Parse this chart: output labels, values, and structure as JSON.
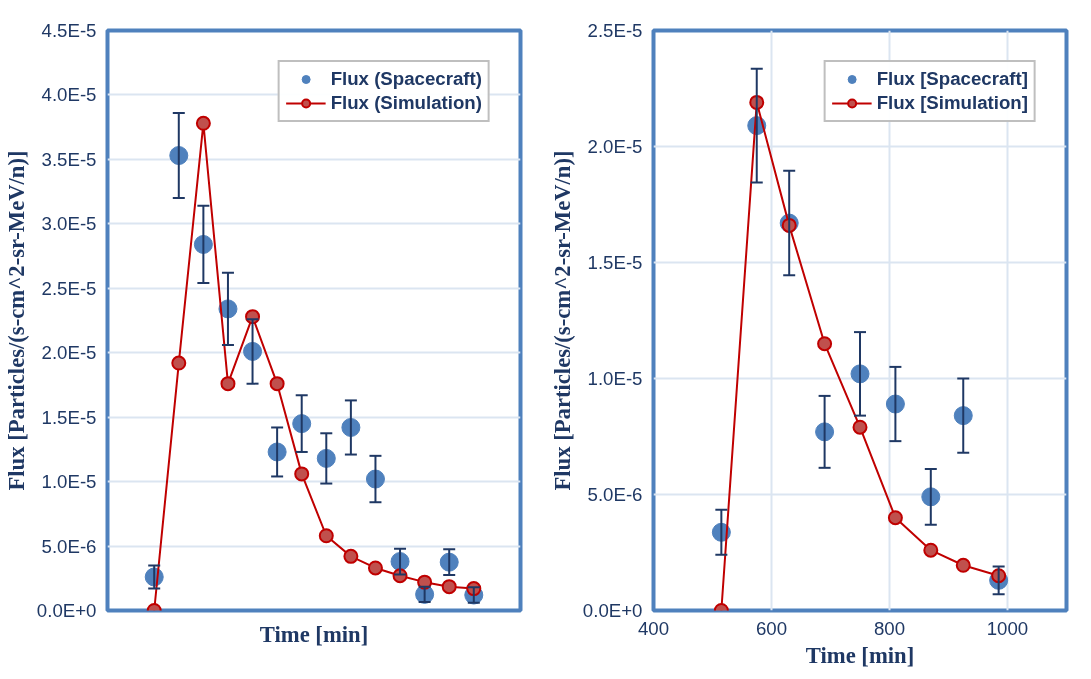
{
  "chart_data": [
    {
      "type": "scatter",
      "xlabel": "Time [min]",
      "ylabel": "Flux [Particles/(s-cm^2-sr-MeV/n)]",
      "categories": [
        null,
        null,
        null,
        null,
        null,
        null,
        null,
        null,
        null,
        null,
        null,
        null,
        null,
        null
      ],
      "ylim": [
        0,
        4.5e-05
      ],
      "yticks": [
        {
          "value": 0,
          "label": "0.0E+0"
        },
        {
          "value": 5e-06,
          "label": "5.0E-6"
        },
        {
          "value": 1e-05,
          "label": "1.0E-5"
        },
        {
          "value": 1.5e-05,
          "label": "1.5E-5"
        },
        {
          "value": 2e-05,
          "label": "2.0E-5"
        },
        {
          "value": 2.5e-05,
          "label": "2.5E-5"
        },
        {
          "value": 3e-05,
          "label": "3.0E-5"
        },
        {
          "value": 3.5e-05,
          "label": "3.5E-5"
        },
        {
          "value": 4e-05,
          "label": "4.0E-5"
        },
        {
          "value": 4.5e-05,
          "label": "4.5E-5"
        }
      ],
      "grid": "y",
      "legend": "top right",
      "tick_labels": "y",
      "series": [
        {
          "name": "Flux (Spacecraft)",
          "marker": "circle",
          "color": "#4f81bd",
          "values": [
            2.6e-06,
            3.53e-05,
            2.84e-05,
            2.34e-05,
            2.01e-05,
            1.23e-05,
            1.45e-05,
            1.18e-05,
            1.42e-05,
            1.02e-05,
            3.8e-06,
            1.25e-06,
            3.75e-06,
            1.2e-06
          ],
          "errors": [
            9e-07,
            3.3e-06,
            3e-06,
            2.8e-06,
            2.5e-06,
            1.9e-06,
            2.2e-06,
            1.95e-06,
            2.1e-06,
            1.8e-06,
            1e-06,
            6e-07,
            1e-06,
            6e-07
          ]
        },
        {
          "name": "Flux (Simulation)",
          "type": "line",
          "marker": "circle",
          "line_style": "solid",
          "color": "#c0504d",
          "values": [
            0,
            1.92e-05,
            3.78e-05,
            1.76e-05,
            2.28e-05,
            1.76e-05,
            1.06e-05,
            5.8e-06,
            4.2e-06,
            3.3e-06,
            2.7e-06,
            2.2e-06,
            1.85e-06,
            1.7e-06
          ]
        }
      ]
    },
    {
      "type": "scatter",
      "xlabel": "Time [min]",
      "ylabel": "Flux [Particles/(s-cm^2-sr-MeV/n)]",
      "x": [
        515,
        575,
        630,
        690,
        750,
        810,
        870,
        925,
        985
      ],
      "xlim": [
        400,
        1100
      ],
      "xticks": [
        400,
        600,
        800,
        1000
      ],
      "ylim": [
        0,
        2.5e-05
      ],
      "yticks": [
        {
          "value": 0,
          "label": "0.0E+0"
        },
        {
          "value": 5e-06,
          "label": "5.0E-6"
        },
        {
          "value": 1e-05,
          "label": "1.0E-5"
        },
        {
          "value": 1.5e-05,
          "label": "1.5E-5"
        },
        {
          "value": 2e-05,
          "label": "2.0E-5"
        },
        {
          "value": 2.5e-05,
          "label": "2.5E-5"
        }
      ],
      "grid": true,
      "legend": "top right",
      "series": [
        {
          "name": "Flux [Spacecraft]",
          "marker": "circle",
          "color": "#4f81bd",
          "values": [
            3.37e-06,
            2.09e-05,
            1.67e-05,
            7.7e-06,
            1.02e-05,
            8.9e-06,
            4.9e-06,
            8.4e-06,
            1.3e-06
          ],
          "errors": [
            9.7e-07,
            2.45e-06,
            2.25e-06,
            1.55e-06,
            1.8e-06,
            1.6e-06,
            1.2e-06,
            1.6e-06,
            6e-07
          ]
        },
        {
          "name": "Flux [Simulation]",
          "type": "line",
          "marker": "circle",
          "line_style": "solid",
          "color": "#c0504d",
          "values": [
            0,
            2.19e-05,
            1.66e-05,
            1.15e-05,
            7.9e-06,
            4e-06,
            2.6e-06,
            1.95e-06,
            1.5e-06
          ]
        }
      ]
    }
  ]
}
